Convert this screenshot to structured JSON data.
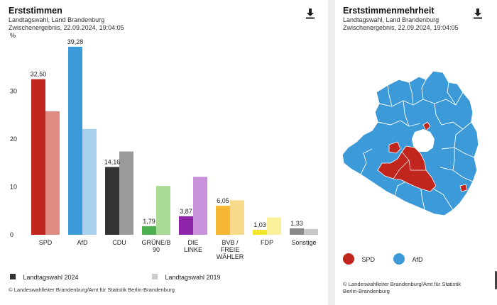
{
  "left": {
    "title": "Erststimmen",
    "subtitle_1": "Landtagswahl, Land Brandenburg",
    "subtitle_2": "Zwischenergebnis, 22.09.2024, 19:04:05",
    "unit": "%",
    "download_icon": "download-icon",
    "legend": [
      {
        "label": "Landtagswahl 2024",
        "color": "#333333"
      },
      {
        "label": "Landtagswahl 2019",
        "color": "#cccccc"
      }
    ],
    "copyright": "© Landeswahlleiter Brandenburg/Amt für Statistik Berlin-Brandenburg"
  },
  "chart_data": {
    "type": "bar",
    "title": "Erststimmen",
    "ylabel": "%",
    "ylim": [
      0,
      40
    ],
    "yticks": [
      0,
      10,
      20,
      30
    ],
    "grid": false,
    "categories": [
      {
        "label_lines": [
          "SPD"
        ],
        "v2024": 32.5,
        "v2019": 25.8,
        "label2024": "32,50",
        "color2024": "#c0261d",
        "color2019": "#e08a84"
      },
      {
        "label_lines": [
          "AfD"
        ],
        "v2024": 39.28,
        "v2019": 22.1,
        "label2024": "39,28",
        "color2024": "#3d9ad8",
        "color2019": "#a6d0ee"
      },
      {
        "label_lines": [
          "CDU"
        ],
        "v2024": 14.16,
        "v2019": 17.4,
        "label2024": "14,16",
        "color2024": "#333333",
        "color2019": "#9a9a9a"
      },
      {
        "label_lines": [
          "GRÜNE/B",
          "90"
        ],
        "v2024": 1.79,
        "v2019": 10.2,
        "label2024": "1,79",
        "color2024": "#4caf50",
        "color2019": "#a8dc95"
      },
      {
        "label_lines": [
          "DIE",
          "LINKE"
        ],
        "v2024": 3.87,
        "v2019": 12.1,
        "label2024": "3,87",
        "color2024": "#8e24aa",
        "color2019": "#c990db"
      },
      {
        "label_lines": [
          "BVB /",
          "FREIE",
          "WÄHLER"
        ],
        "v2024": 6.05,
        "v2019": 7.2,
        "label2024": "6,05",
        "color2024": "#f5b731",
        "color2019": "#f8d98c"
      },
      {
        "label_lines": [
          "FDP"
        ],
        "v2024": 1.03,
        "v2019": 3.6,
        "label2024": "1,03",
        "color2024": "#f2e52a",
        "color2019": "#f8f19a"
      },
      {
        "label_lines": [
          "Sonstige"
        ],
        "v2024": 1.33,
        "v2019": 1.2,
        "label2024": "1,33",
        "color2024": "#888888",
        "color2019": "#c7c7c7"
      }
    ]
  },
  "right": {
    "title": "Erststimmenmehrheit",
    "subtitle_1": "Landtagswahl, Land Brandenburg",
    "subtitle_2": "Zwischenergebnis, 22.09.2024, 19:04:05",
    "download_icon": "download-icon",
    "legend": [
      {
        "label": "SPD",
        "color": "#c0261d"
      },
      {
        "label": "AfD",
        "color": "#3d9ad8"
      }
    ],
    "copyright_1": "© Landeswahlleiter Brandenburg/Amt für Statistik",
    "copyright_2": "Berlin-Brandenburg"
  }
}
